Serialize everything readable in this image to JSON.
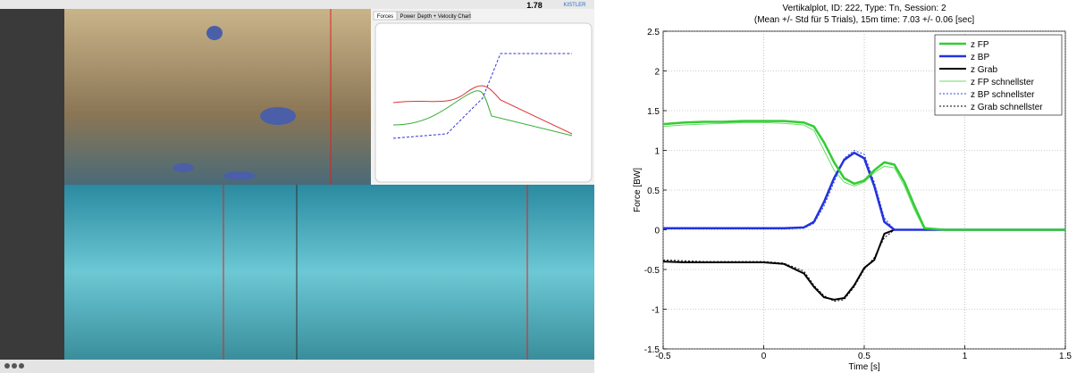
{
  "screenshot": {
    "value_display": "1.78",
    "brand": "KISTLER",
    "tabs": [
      "Forces",
      "Power",
      "Depth + Velocity Chart"
    ]
  },
  "chart_data": {
    "type": "line",
    "title": "Vertikalplot, ID: 222, Type: Tn, Session: 2",
    "subtitle": "(Mean +/- Std für 5 Trials), 15m time: 7.03 +/- 0.06 [sec]",
    "x_label": "Time [s]",
    "y_label": "Force [BW]",
    "xlim": [
      -0.5,
      1.5
    ],
    "xticks": [
      -0.5,
      0,
      0.5,
      1,
      1.5
    ],
    "ylim": [
      -1.5,
      2.5
    ],
    "yticks": [
      -1.5,
      -1,
      -0.5,
      0,
      0.5,
      1,
      1.5,
      2,
      2.5
    ],
    "grid": true,
    "legend": "upper right",
    "x": [
      -0.5,
      -0.4,
      -0.3,
      -0.2,
      -0.1,
      0,
      0.1,
      0.2,
      0.25,
      0.3,
      0.35,
      0.4,
      0.45,
      0.5,
      0.55,
      0.6,
      0.65,
      0.7,
      0.75,
      0.8,
      0.9,
      1.0,
      1.1,
      1.2,
      1.3,
      1.4,
      1.5
    ],
    "series": [
      {
        "name": "z FP",
        "color": "#33cc33",
        "width": 2.5,
        "style": "solid",
        "values": [
          1.33,
          1.35,
          1.36,
          1.36,
          1.37,
          1.37,
          1.37,
          1.35,
          1.3,
          1.1,
          0.85,
          0.65,
          0.58,
          0.62,
          0.75,
          0.85,
          0.82,
          0.6,
          0.3,
          0.02,
          0,
          0,
          0,
          0,
          0,
          0,
          0
        ]
      },
      {
        "name": "z BP",
        "color": "#2233dd",
        "width": 2.5,
        "style": "solid",
        "values": [
          0.02,
          0.02,
          0.02,
          0.02,
          0.02,
          0.02,
          0.02,
          0.03,
          0.1,
          0.35,
          0.65,
          0.88,
          0.97,
          0.9,
          0.55,
          0.1,
          0,
          0,
          0,
          0,
          0,
          0,
          0,
          0,
          0,
          0,
          0
        ]
      },
      {
        "name": "z Grab",
        "color": "#000000",
        "width": 2,
        "style": "solid",
        "values": [
          -0.4,
          -0.41,
          -0.41,
          -0.41,
          -0.41,
          -0.41,
          -0.43,
          -0.55,
          -0.72,
          -0.85,
          -0.88,
          -0.86,
          -0.7,
          -0.48,
          -0.38,
          -0.05,
          0,
          0,
          0,
          0,
          0,
          0,
          0,
          0,
          0,
          0,
          0
        ]
      },
      {
        "name": "z FP schnellster",
        "color": "#66dd66",
        "width": 1,
        "style": "solid",
        "values": [
          1.3,
          1.32,
          1.33,
          1.34,
          1.35,
          1.35,
          1.34,
          1.32,
          1.25,
          1.0,
          0.75,
          0.6,
          0.55,
          0.6,
          0.72,
          0.8,
          0.78,
          0.55,
          0.25,
          0,
          0,
          0,
          0,
          0,
          0,
          0,
          0
        ]
      },
      {
        "name": "z BP schnellster",
        "color": "#3344ee",
        "width": 1,
        "style": "dotted",
        "values": [
          0.01,
          0.01,
          0.01,
          0.01,
          0.01,
          0.01,
          0.01,
          0.02,
          0.08,
          0.3,
          0.6,
          0.9,
          1.0,
          0.95,
          0.6,
          0.15,
          0,
          0,
          0,
          0,
          0,
          0,
          0,
          0,
          0,
          0,
          0
        ]
      },
      {
        "name": "z Grab schnellster",
        "color": "#000000",
        "width": 1,
        "style": "dotted",
        "values": [
          -0.38,
          -0.39,
          -0.4,
          -0.4,
          -0.4,
          -0.4,
          -0.42,
          -0.52,
          -0.7,
          -0.83,
          -0.9,
          -0.88,
          -0.72,
          -0.5,
          -0.35,
          -0.1,
          0,
          0,
          0,
          0,
          0,
          0,
          0,
          0,
          0,
          0,
          0
        ]
      }
    ]
  }
}
